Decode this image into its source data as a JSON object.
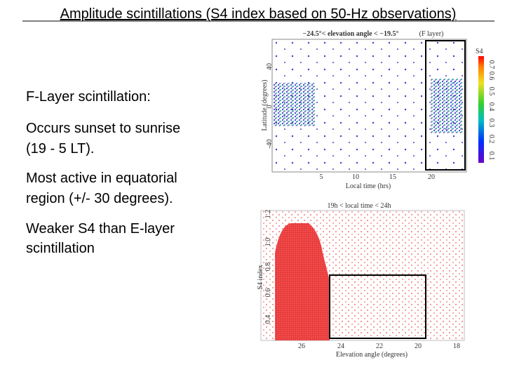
{
  "title": "Amplitude scintillations (S4 index based on 50-Hz observations)",
  "body": {
    "heading": "F-Layer scintillation:",
    "points": [
      [
        "Occurs sunset to sunrise",
        "(19 - 5 LT)."
      ],
      [
        "Most active in equatorial",
        "region (+/- 30 degrees)."
      ],
      [
        "Weaker S4 than E-layer",
        "scintillation"
      ]
    ]
  },
  "figure_top": {
    "title": "−24.5°< elevation angle < −19.5°",
    "subtitle": "(F layer)",
    "ylabel": "Latitude (degrees)",
    "xlabel": "Local time (hrs)",
    "yticks": [
      "40",
      "0",
      "-40"
    ],
    "xticks": [
      "5",
      "10",
      "15",
      "20"
    ],
    "colorbar_label": "S4",
    "colorbar_ticks": [
      "0.7",
      "0.6",
      "0.5",
      "0.4",
      "0.3",
      "0.2",
      "0.1"
    ]
  },
  "figure_bottom": {
    "title": "19h < local time < 24h",
    "ylabel": "S4 index",
    "xlabel": "Elevation angle (degrees)",
    "yticks": [
      "1.2",
      "1.0",
      "0.8",
      "0.6",
      "0.4"
    ],
    "xticks": [
      "26",
      "24",
      "22",
      "20",
      "18"
    ]
  }
}
